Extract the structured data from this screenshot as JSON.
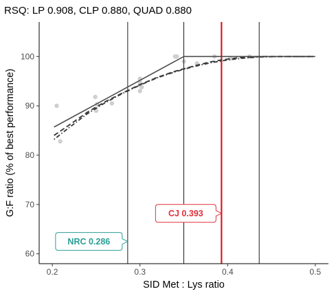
{
  "chart_data": {
    "type": "scatter",
    "title": "RSQ: LP 0.908, CLP 0.880, QUAD 0.880",
    "xlabel": "SID Met : Lys ratio",
    "ylabel": "G:F ratio (% of best performance)",
    "xlim": [
      0.185,
      0.515
    ],
    "ylim": [
      58,
      107
    ],
    "x_ticks": [
      0.2,
      0.3,
      0.4,
      0.5
    ],
    "x_tick_labels": [
      "0.2",
      "0.3",
      "0.4",
      "0.5"
    ],
    "y_ticks": [
      60,
      70,
      80,
      90,
      100
    ],
    "y_tick_labels": [
      "60",
      "70",
      "80",
      "90",
      "100"
    ],
    "grid": false,
    "points": {
      "x": [
        0.205,
        0.209,
        0.249,
        0.251,
        0.25,
        0.268,
        0.3,
        0.3,
        0.302,
        0.3,
        0.3,
        0.34,
        0.342,
        0.35,
        0.365,
        0.385,
        0.403,
        0.425
      ],
      "y": [
        90.0,
        82.8,
        91.8,
        90.3,
        89.0,
        90.5,
        95.5,
        94.2,
        93.8,
        93.0,
        94.8,
        100.0,
        100.0,
        99.0,
        98.6,
        100.0,
        99.6,
        100.0
      ],
      "color": "#cfcfcf"
    },
    "series": [
      {
        "style": "solid",
        "color": "#4d4d4d",
        "x": [
          0.202,
          0.35,
          0.5
        ],
        "y": [
          85.7,
          100.0,
          100.0
        ]
      },
      {
        "style": "dashed",
        "color": "#3a3a3a",
        "x": [
          0.202,
          0.22,
          0.24,
          0.26,
          0.28,
          0.3,
          0.32,
          0.34,
          0.36,
          0.38,
          0.393,
          0.41,
          0.436,
          0.5
        ],
        "y": [
          84.0,
          86.2,
          88.7,
          90.8,
          92.6,
          94.3,
          95.8,
          97.0,
          98.0,
          98.9,
          99.3,
          99.7,
          100.0,
          100.0
        ]
      },
      {
        "style": "dotdash",
        "color": "#3a3a3a",
        "x": [
          0.202,
          0.22,
          0.24,
          0.26,
          0.28,
          0.3,
          0.32,
          0.34,
          0.36,
          0.38,
          0.4,
          0.42,
          0.436,
          0.46,
          0.5
        ],
        "y": [
          83.2,
          85.7,
          88.4,
          90.6,
          92.5,
          94.2,
          95.7,
          96.9,
          97.9,
          98.7,
          99.3,
          99.7,
          99.9,
          100.0,
          100.0
        ]
      }
    ],
    "vlines": [
      {
        "x": 0.286,
        "color": "#1a1a1a",
        "width": 1
      },
      {
        "x": 0.35,
        "color": "#1a1a1a",
        "width": 1
      },
      {
        "x": 0.436,
        "color": "#1a1a1a",
        "width": 1
      },
      {
        "x": 0.393,
        "color": "#e0161f",
        "width": 2.2
      }
    ],
    "annotations": [
      {
        "text": "NRC 0.286",
        "x": 0.286,
        "y": 62.5,
        "side": "left",
        "color": "#2a9d96",
        "stroke": "#2a9d96"
      },
      {
        "text": "CJ 0.393",
        "x": 0.393,
        "y": 68.2,
        "side": "left",
        "color": "#e0303a",
        "stroke": "#e0303a"
      }
    ]
  }
}
